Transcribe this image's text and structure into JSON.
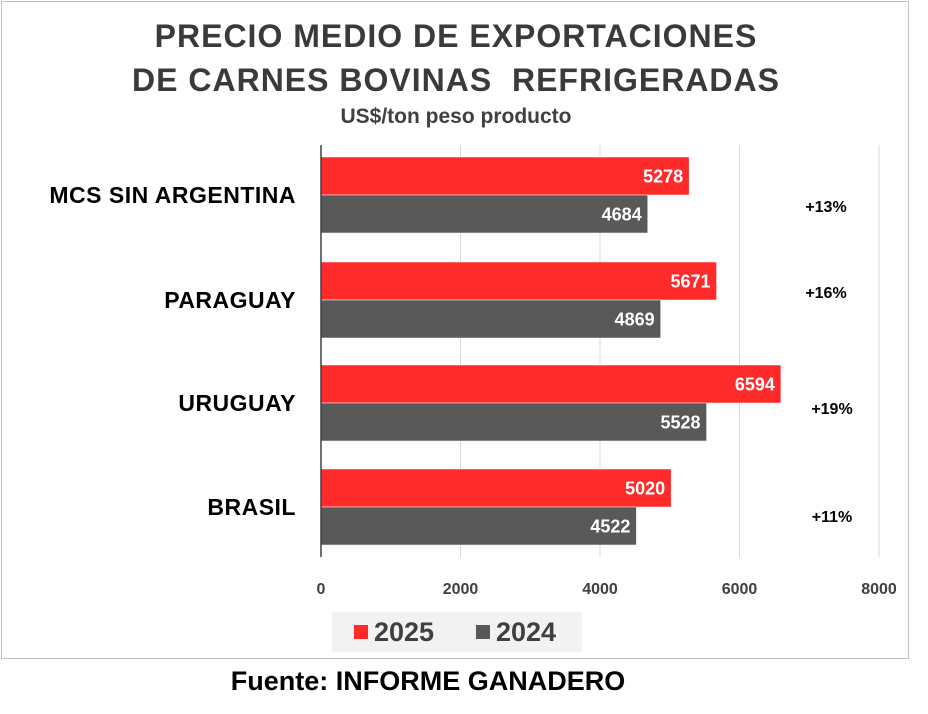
{
  "chart_data": {
    "type": "bar",
    "orientation": "horizontal",
    "title": "PRECIO MEDIO DE EXPORTACIONES DE CARNES BOVINAS  REFRIGERADAS",
    "title_lines": [
      "PRECIO MEDIO DE EXPORTACIONES",
      "DE CARNES BOVINAS  REFRIGERADAS"
    ],
    "subtitle": "US$/ton peso producto",
    "xlabel": "",
    "ylabel": "",
    "categories": [
      "MCS SIN ARGENTINA",
      "PARAGUAY",
      "URUGUAY",
      "BRASIL"
    ],
    "series": [
      {
        "name": "2025",
        "color": "#ff2a2a",
        "values": [
          5278,
          5671,
          6594,
          5020
        ]
      },
      {
        "name": "2024",
        "color": "#595959",
        "values": [
          4684,
          4869,
          5528,
          4522
        ]
      }
    ],
    "annotations": [
      "+13%",
      "+16%",
      "+19%",
      "+11%"
    ],
    "xlim": [
      0,
      8000
    ],
    "xticks": [
      0,
      2000,
      4000,
      6000,
      8000
    ],
    "grid": true,
    "legend_position": "bottom"
  },
  "source": "Fuente: INFORME GANADERO"
}
